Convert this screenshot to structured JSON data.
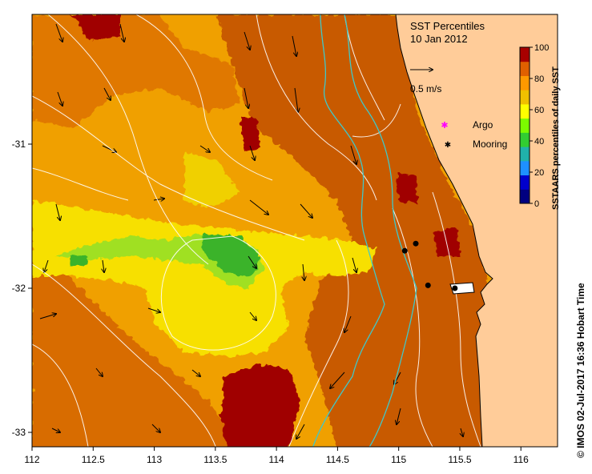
{
  "map": {
    "title": "SST Percentiles",
    "date": "10 Jan 2012",
    "x_ticks": [
      "112",
      "112.5",
      "113",
      "113.5",
      "114",
      "114.5",
      "115",
      "115.5",
      "116"
    ],
    "y_ticks": [
      "-31",
      "-32",
      "-33"
    ],
    "x_range": [
      112,
      116.3
    ],
    "y_range": [
      -33.1,
      -30.1
    ],
    "velocity_scale_label": "0.5 m/s",
    "legend": {
      "argo_label": "Argo",
      "argo_color": "#ff00ff",
      "mooring_label": "Mooring",
      "mooring_color": "#000000"
    },
    "colorbar": {
      "label": "SSTAARS percentiles of daily SST",
      "ticks": [
        "0",
        "20",
        "40",
        "60",
        "80",
        "100"
      ],
      "colors": [
        "#000080",
        "#0000cd",
        "#1e90ff",
        "#20b2aa",
        "#32cd32",
        "#7cfc00",
        "#ffff00",
        "#f0c000",
        "#ff9900",
        "#e06000",
        "#a80000"
      ]
    },
    "moorings": [
      {
        "lon": 115.05,
        "lat": -31.74
      },
      {
        "lon": 115.14,
        "lat": -31.69
      },
      {
        "lon": 115.24,
        "lat": -31.98
      },
      {
        "lon": 115.46,
        "lat": -32.0
      }
    ],
    "land_color": "#ffcc99",
    "credit": "© IMOS 02-Jul-2017 16:36 Hobart Time"
  }
}
